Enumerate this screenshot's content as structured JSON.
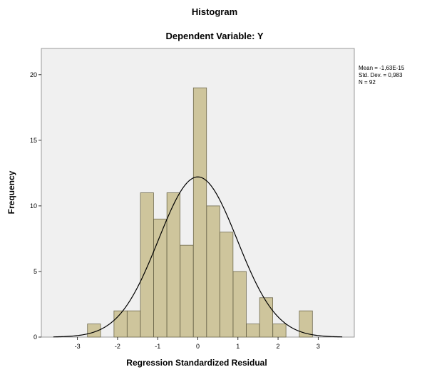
{
  "chart_data": {
    "type": "bar",
    "title": "Histogram",
    "subtitle": "Dependent Variable: Y",
    "xlabel": "Regression Standardized Residual",
    "ylabel": "Frequency",
    "xlim": [
      -3.9,
      3.9
    ],
    "ylim": [
      0,
      22
    ],
    "x_ticks": [
      "-3",
      "-2",
      "-1",
      "0",
      "1",
      "2",
      "3"
    ],
    "y_ticks": [
      "0",
      "5",
      "10",
      "15",
      "20"
    ],
    "bin_width": 0.327,
    "bins": [
      {
        "start": -2.75,
        "count": 1
      },
      {
        "start": -2.09,
        "count": 2
      },
      {
        "start": -1.76,
        "count": 2
      },
      {
        "start": -1.43,
        "count": 11
      },
      {
        "start": -1.1,
        "count": 9
      },
      {
        "start": -0.77,
        "count": 11
      },
      {
        "start": -0.44,
        "count": 7
      },
      {
        "start": -0.11,
        "count": 19
      },
      {
        "start": 0.22,
        "count": 10
      },
      {
        "start": 0.55,
        "count": 8
      },
      {
        "start": 0.88,
        "count": 5
      },
      {
        "start": 1.21,
        "count": 1
      },
      {
        "start": 1.54,
        "count": 3
      },
      {
        "start": 1.87,
        "count": 1
      },
      {
        "start": 2.53,
        "count": 2
      }
    ],
    "normal_curve": {
      "mean": 0,
      "std": 0.983,
      "n": 92
    },
    "stats": [
      "Mean = -1,63E-15",
      "Std. Dev. = 0,983",
      "N = 92"
    ],
    "colors": {
      "bar_fill": "#cec59c",
      "bar_stroke": "#6f6a4e",
      "plot_bg": "#f0f0f0",
      "curve": "#000000"
    },
    "grid": false
  }
}
